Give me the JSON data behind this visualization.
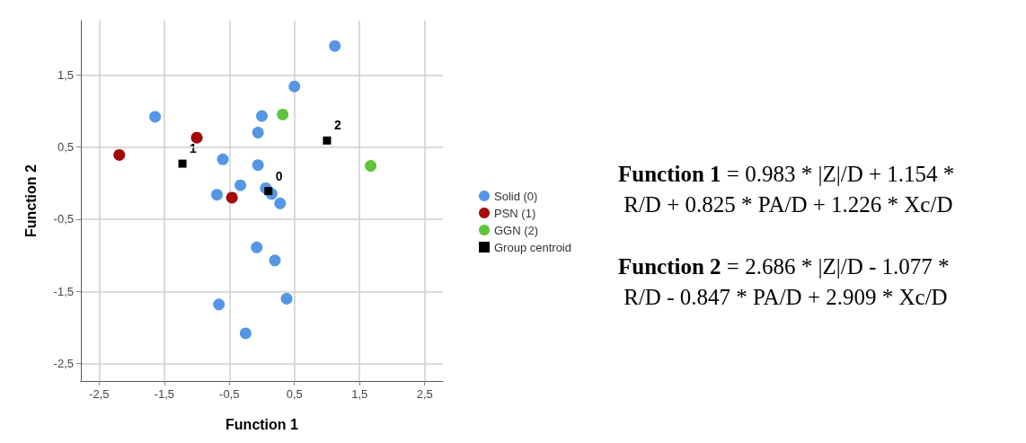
{
  "chart_data": {
    "type": "scatter",
    "xlabel": "Function 1",
    "ylabel": "Function 2",
    "xlim": [
      -2.78,
      2.78
    ],
    "ylim": [
      -2.74,
      2.25
    ],
    "xticks": [
      {
        "value": -2.5,
        "label": "-2,5"
      },
      {
        "value": -1.5,
        "label": "-1,5"
      },
      {
        "value": -0.5,
        "label": "-0,5"
      },
      {
        "value": 0.5,
        "label": "0,5"
      },
      {
        "value": 1.5,
        "label": "1,5"
      },
      {
        "value": 2.5,
        "label": "2,5"
      }
    ],
    "yticks": [
      {
        "value": -2.5,
        "label": "-2,5"
      },
      {
        "value": -1.5,
        "label": "-1,5"
      },
      {
        "value": -0.5,
        "label": "-0,5"
      },
      {
        "value": 0.5,
        "label": "0,5"
      },
      {
        "value": 1.5,
        "label": "1,5"
      }
    ],
    "grid": true,
    "legend": "right",
    "marker": "circle",
    "series": [
      {
        "name": "Solid (0)",
        "color": "#5597e5",
        "x": [
          1.12,
          0.5,
          -1.64,
          0.0,
          -0.06,
          -0.6,
          -0.06,
          -0.33,
          -0.69,
          0.06,
          0.15,
          0.28,
          -0.08,
          0.2,
          0.38,
          -0.66,
          -0.25
        ],
        "values": [
          1.9,
          1.34,
          0.92,
          0.93,
          0.7,
          0.33,
          0.25,
          -0.03,
          -0.16,
          -0.07,
          -0.15,
          -0.28,
          -0.89,
          -1.07,
          -1.6,
          -1.68,
          -2.08
        ]
      },
      {
        "name": "PSN (1)",
        "color": "#a30a0a",
        "x": [
          -2.19,
          -1.0,
          -0.46
        ],
        "values": [
          0.39,
          0.63,
          -0.2
        ]
      },
      {
        "name": "GGN (2)",
        "color": "#5ec43c",
        "x": [
          0.32,
          1.67
        ],
        "values": [
          0.95,
          0.24
        ]
      },
      {
        "name": "Group centroid",
        "color": "#000000",
        "marker": "square",
        "x": [
          0.1,
          -1.22,
          1.0
        ],
        "values": [
          -0.11,
          0.27,
          0.59
        ]
      }
    ],
    "annotations": [
      {
        "text": "0",
        "x": 0.1,
        "y": -0.11
      },
      {
        "text": "1",
        "x": -1.22,
        "y": 0.27
      },
      {
        "text": "2",
        "x": 1.0,
        "y": 0.59
      },
      "Function 1 = 0.983 * |Z|/D + 1.154 * R/D + 0.825 * PA/D + 1.226 * Xc/D",
      "Function 2 = 2.686 * |Z|/D - 1.077 * R/D - 0.847 * PA/D + 2.909 * Xc/D"
    ]
  }
}
